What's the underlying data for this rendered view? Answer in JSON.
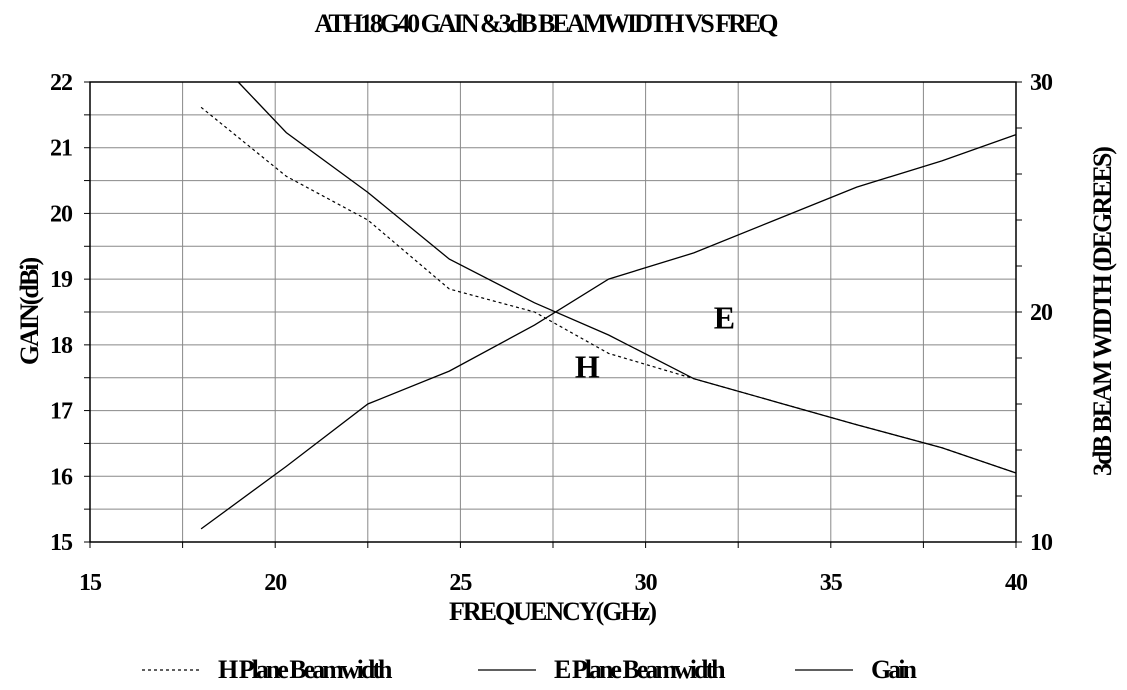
{
  "chart_data": {
    "type": "line",
    "title": "ATH18G40 GAIN &3dB BEAMWIDTH VS FREQ",
    "xlabel": "FREQUENCY(GHz)",
    "ylabel_left": "GAIN(dBi)",
    "ylabel_right": "3dB BEAM WIDTH (DEGREES)",
    "xlim": [
      15,
      40
    ],
    "ylim_left": [
      15,
      22
    ],
    "ylim_right": [
      10,
      30
    ],
    "x_ticks": [
      "15",
      "20",
      "25",
      "30",
      "35",
      "40"
    ],
    "y_left_ticks": [
      "15",
      "16",
      "17",
      "18",
      "19",
      "20",
      "21",
      "22"
    ],
    "y_right_ticks": [
      "10",
      "20",
      "30"
    ],
    "grid": true,
    "legend_position": "bottom",
    "series": [
      {
        "name": "H Plane Beamwidth",
        "axis": "right",
        "style": "dotted",
        "color": "#000000",
        "x": [
          18,
          20.3,
          22.5,
          24.7,
          27,
          29,
          31.3,
          33.5,
          35.7,
          38,
          40
        ],
        "y": [
          28.9,
          25.9,
          24.0,
          21.0,
          20.0,
          18.2,
          17.1,
          16.1,
          15.1,
          14.1,
          13.0
        ]
      },
      {
        "name": "E Plane Beamwidth",
        "axis": "right",
        "style": "solid",
        "color": "#000000",
        "x": [
          19,
          20.3,
          22.5,
          24.7,
          27,
          29,
          31.3,
          33.5,
          35.7,
          38,
          40
        ],
        "y": [
          30.0,
          27.8,
          25.2,
          22.3,
          20.4,
          19.0,
          17.1,
          16.1,
          15.1,
          14.1,
          13.0
        ]
      },
      {
        "name": "Gain",
        "axis": "left",
        "style": "solid",
        "color": "#000000",
        "x": [
          18,
          20.3,
          22.5,
          24.7,
          27,
          29,
          31.3,
          33.5,
          35.7,
          38,
          40
        ],
        "y": [
          15.2,
          16.15,
          17.1,
          17.6,
          18.3,
          19.0,
          19.4,
          19.9,
          20.4,
          20.8,
          21.2
        ]
      }
    ],
    "annotations": [
      {
        "text": "E",
        "x": 32.1,
        "y_left": 18.25
      },
      {
        "text": "H",
        "x": 28.4,
        "y_left": 17.5
      }
    ]
  }
}
